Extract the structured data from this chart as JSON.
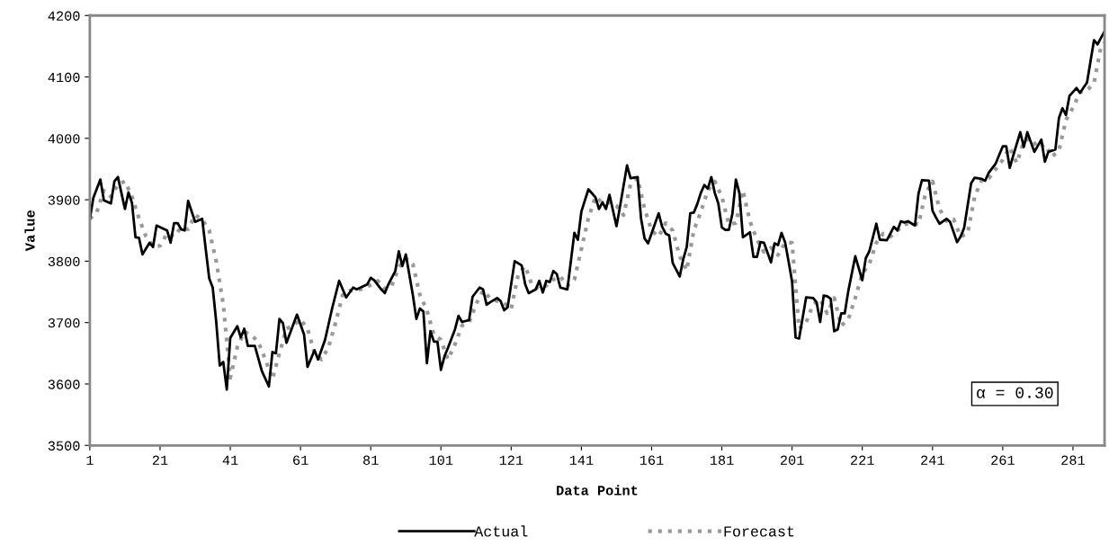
{
  "chart_data": {
    "type": "line",
    "xlabel": "Data Point",
    "ylabel": "Value",
    "xlim": [
      1,
      290
    ],
    "xticks": [
      1,
      21,
      41,
      61,
      81,
      101,
      121,
      141,
      161,
      181,
      201,
      221,
      241,
      261,
      281
    ],
    "ylim": [
      3500,
      4200
    ],
    "yticks": [
      3500,
      3600,
      3700,
      3800,
      3900,
      4000,
      4100,
      4200
    ],
    "grid": false,
    "legend": "bottom",
    "marker": "none",
    "annotations": [
      "α = 0.30"
    ],
    "series": [
      {
        "name": "Actual",
        "color": "#000000",
        "line_style": "solid",
        "x": [
          1,
          2,
          4,
          5,
          7,
          8,
          9,
          11,
          12,
          13,
          14,
          15,
          16,
          18,
          19,
          20,
          23,
          24,
          25,
          26,
          27,
          28,
          29,
          31,
          33,
          34,
          35,
          36,
          37,
          38,
          39,
          40,
          41,
          43,
          44,
          45,
          46,
          48,
          50,
          52,
          53,
          54,
          55,
          56,
          57,
          60,
          62,
          63,
          65,
          66,
          68,
          70,
          72,
          74,
          76,
          77,
          80,
          81,
          82,
          84,
          85,
          86,
          88,
          89,
          90,
          91,
          93,
          94,
          95,
          96,
          97,
          98,
          99,
          100,
          101,
          102,
          103,
          105,
          106,
          107,
          109,
          110,
          112,
          113,
          114,
          115,
          117,
          118,
          119,
          120,
          122,
          124,
          125,
          126,
          128,
          129,
          130,
          131,
          132,
          133,
          134,
          135,
          137,
          139,
          140,
          141,
          143,
          145,
          146,
          147,
          148,
          149,
          151,
          152,
          154,
          155,
          157,
          158,
          159,
          160,
          163,
          164,
          165,
          166,
          167,
          168,
          169,
          170,
          171,
          172,
          173,
          174,
          175,
          176,
          177,
          178,
          179,
          180,
          181,
          182,
          183,
          184,
          185,
          186,
          187,
          189,
          190,
          191,
          192,
          193,
          195,
          196,
          197,
          198,
          199,
          200,
          201,
          202,
          203,
          205,
          207,
          208,
          209,
          210,
          211,
          212,
          213,
          214,
          215,
          216,
          217,
          219,
          221,
          222,
          223,
          225,
          226,
          228,
          230,
          231,
          232,
          233,
          234,
          236,
          237,
          238,
          240,
          241,
          242,
          243,
          245,
          246,
          248,
          249,
          250,
          252,
          253,
          255,
          256,
          257,
          259,
          261,
          262,
          263,
          264,
          266,
          267,
          268,
          270,
          272,
          273,
          274,
          276,
          277,
          278,
          279,
          280,
          282,
          283,
          285,
          287,
          288,
          289,
          290
        ],
        "values": [
          3869,
          3903,
          3933,
          3899,
          3894,
          3930,
          3937,
          3885,
          3912,
          3895,
          3839,
          3838,
          3811,
          3830,
          3823,
          3858,
          3850,
          3830,
          3862,
          3862,
          3852,
          3850,
          3898,
          3864,
          3869,
          3820,
          3772,
          3757,
          3701,
          3630,
          3636,
          3591,
          3675,
          3694,
          3676,
          3690,
          3662,
          3662,
          3621,
          3596,
          3652,
          3650,
          3706,
          3699,
          3667,
          3713,
          3681,
          3628,
          3655,
          3640,
          3672,
          3723,
          3768,
          3741,
          3757,
          3754,
          3762,
          3773,
          3769,
          3754,
          3748,
          3762,
          3784,
          3816,
          3792,
          3811,
          3745,
          3706,
          3723,
          3718,
          3634,
          3686,
          3669,
          3669,
          3623,
          3645,
          3659,
          3689,
          3711,
          3701,
          3704,
          3742,
          3757,
          3754,
          3729,
          3733,
          3740,
          3735,
          3720,
          3725,
          3800,
          3793,
          3762,
          3748,
          3754,
          3768,
          3749,
          3768,
          3766,
          3784,
          3779,
          3757,
          3754,
          3846,
          3835,
          3881,
          3917,
          3904,
          3885,
          3896,
          3885,
          3908,
          3857,
          3889,
          3956,
          3935,
          3937,
          3869,
          3837,
          3829,
          3878,
          3856,
          3845,
          3842,
          3797,
          3786,
          3775,
          3803,
          3823,
          3878,
          3879,
          3893,
          3911,
          3924,
          3918,
          3937,
          3911,
          3894,
          3855,
          3851,
          3851,
          3877,
          3933,
          3911,
          3839,
          3847,
          3807,
          3807,
          3831,
          3830,
          3798,
          3829,
          3826,
          3846,
          3831,
          3800,
          3767,
          3676,
          3674,
          3741,
          3740,
          3733,
          3701,
          3744,
          3743,
          3739,
          3686,
          3689,
          3715,
          3715,
          3751,
          3808,
          3769,
          3805,
          3816,
          3861,
          3835,
          3834,
          3856,
          3850,
          3865,
          3863,
          3865,
          3858,
          3910,
          3932,
          3931,
          3882,
          3871,
          3861,
          3869,
          3864,
          3831,
          3840,
          3854,
          3927,
          3936,
          3934,
          3931,
          3944,
          3959,
          3987,
          3987,
          3952,
          3972,
          4010,
          3986,
          4010,
          3978,
          3998,
          3962,
          3978,
          3982,
          4033,
          4049,
          4038,
          4069,
          4082,
          4074,
          4091,
          4160,
          4153,
          4164,
          4174
        ]
      },
      {
        "name": "Forecast",
        "color": "#999999",
        "line_style": "dotted",
        "x": [
          1,
          3,
          5,
          7,
          9,
          11,
          13,
          15,
          17,
          19,
          21,
          23,
          25,
          27,
          29,
          31,
          33,
          35,
          37,
          39,
          41,
          43,
          45,
          47,
          49,
          51,
          53,
          55,
          57,
          59,
          61,
          63,
          65,
          67,
          69,
          71,
          73,
          75,
          77,
          80,
          83,
          85,
          87,
          89,
          91,
          93,
          95,
          97,
          99,
          101,
          103,
          105,
          107,
          109,
          111,
          113,
          115,
          117,
          119,
          121,
          123,
          125,
          127,
          129,
          131,
          133,
          135,
          137,
          139,
          141,
          143,
          145,
          147,
          149,
          151,
          153,
          155,
          157,
          159,
          161,
          163,
          165,
          167,
          169,
          171,
          173,
          175,
          177,
          179,
          181,
          183,
          185,
          187,
          189,
          191,
          193,
          195,
          197,
          199,
          201,
          203,
          205,
          207,
          209,
          211,
          213,
          215,
          217,
          219,
          221,
          223,
          225,
          227,
          229,
          231,
          233,
          235,
          237,
          239,
          241,
          243,
          245,
          247,
          249,
          251,
          253,
          255,
          257,
          259,
          261,
          263,
          265,
          267,
          269,
          271,
          273,
          275,
          277,
          279,
          281,
          283,
          285,
          287,
          289,
          290
        ],
        "values": [
          3869,
          3880,
          3915,
          3905,
          3925,
          3930,
          3905,
          3870,
          3840,
          3825,
          3825,
          3845,
          3840,
          3855,
          3852,
          3875,
          3868,
          3850,
          3800,
          3730,
          3610,
          3660,
          3685,
          3680,
          3668,
          3640,
          3608,
          3650,
          3690,
          3695,
          3705,
          3690,
          3650,
          3640,
          3660,
          3700,
          3745,
          3752,
          3752,
          3758,
          3768,
          3755,
          3760,
          3790,
          3805,
          3795,
          3745,
          3720,
          3680,
          3672,
          3640,
          3665,
          3695,
          3700,
          3730,
          3752,
          3740,
          3735,
          3732,
          3722,
          3778,
          3792,
          3760,
          3755,
          3760,
          3770,
          3775,
          3760,
          3770,
          3820,
          3870,
          3905,
          3895,
          3895,
          3890,
          3875,
          3925,
          3935,
          3885,
          3850,
          3840,
          3862,
          3850,
          3808,
          3785,
          3850,
          3880,
          3915,
          3930,
          3905,
          3860,
          3862,
          3915,
          3865,
          3835,
          3815,
          3822,
          3810,
          3830,
          3830,
          3690,
          3700,
          3730,
          3738,
          3715,
          3740,
          3695,
          3705,
          3740,
          3780,
          3795,
          3830,
          3845,
          3840,
          3850,
          3860,
          3862,
          3860,
          3910,
          3930,
          3885,
          3865,
          3868,
          3840,
          3845,
          3905,
          3932,
          3935,
          3950,
          3965,
          3985,
          3960,
          3995,
          4000,
          3985,
          3990,
          3970,
          3980,
          4030,
          4050,
          4075,
          4078,
          4090,
          4150,
          4155
        ]
      }
    ]
  }
}
